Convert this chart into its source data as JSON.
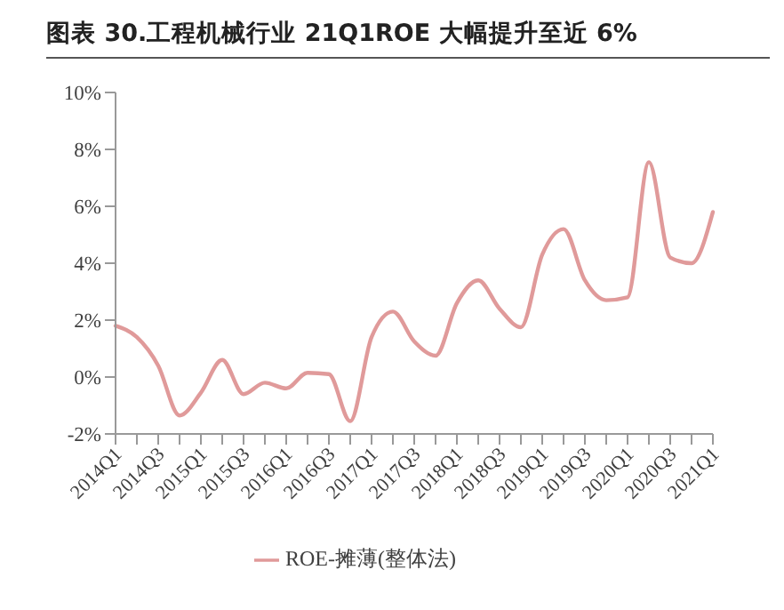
{
  "chart_data": {
    "type": "line",
    "title": "图表 30.工程机械行业 21Q1ROE 大幅提升至近 6%",
    "categories": [
      "2014Q1",
      null,
      "2014Q3",
      null,
      "2015Q1",
      null,
      "2015Q3",
      null,
      "2016Q1",
      null,
      "2016Q3",
      null,
      "2017Q1",
      null,
      "2017Q3",
      null,
      "2018Q1",
      null,
      "2018Q3",
      null,
      "2019Q1",
      null,
      "2019Q3",
      null,
      "2020Q1",
      null,
      "2020Q3",
      null,
      "2021Q1"
    ],
    "series": [
      {
        "name": "ROE-摊薄(整体法)",
        "color": "#e09a9a",
        "values": [
          1.8,
          1.4,
          0.4,
          -1.35,
          -0.55,
          0.6,
          -0.6,
          -0.2,
          -0.4,
          0.15,
          0.1,
          -1.55,
          1.4,
          2.3,
          1.25,
          0.75,
          2.6,
          3.4,
          2.4,
          1.75,
          4.3,
          5.2,
          3.4,
          2.7,
          2.8,
          7.55,
          4.2,
          4.0,
          5.8
        ]
      }
    ],
    "ylim": [
      -2,
      10
    ],
    "yticks": [
      {
        "value": -2,
        "label": "-2%"
      },
      {
        "value": 0,
        "label": "0%"
      },
      {
        "value": 2,
        "label": "2%"
      },
      {
        "value": 4,
        "label": "4%"
      },
      {
        "value": 6,
        "label": "6%"
      },
      {
        "value": 8,
        "label": "8%"
      },
      {
        "value": 10,
        "label": "10%"
      }
    ],
    "grid": false,
    "legend": "bottom",
    "marker": "none",
    "line_style": "solid"
  }
}
